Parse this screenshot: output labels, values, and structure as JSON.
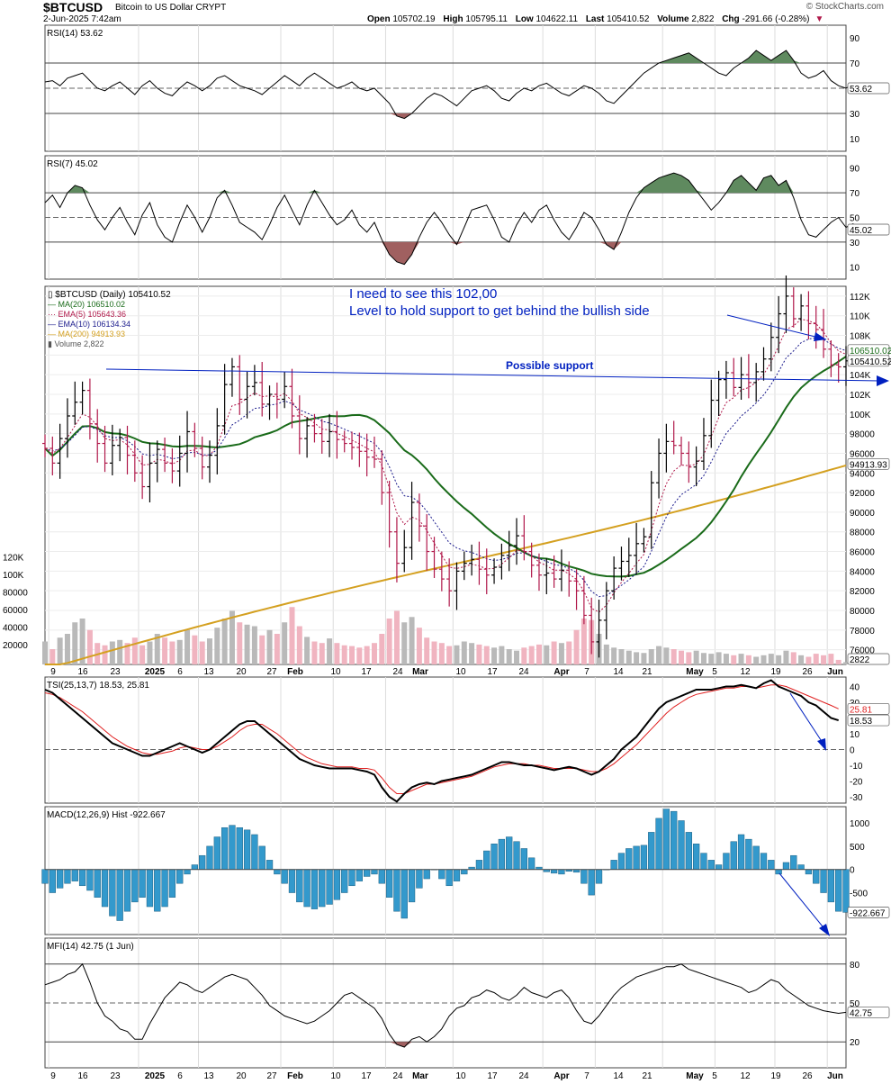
{
  "header": {
    "symbol": "$BTCUSD",
    "name": "Bitcoin to US Dollar",
    "exchange": "CRYPT",
    "date": "2-Jun-2025 7:42am",
    "brand": "© StockCharts.com",
    "open_label": "Open",
    "open": "105702.19",
    "high_label": "High",
    "high": "105795.11",
    "low_label": "Low",
    "low": "104622.11",
    "last_label": "Last",
    "last": "105410.52",
    "volume_label": "Volume",
    "volume": "2,822",
    "chg_label": "Chg",
    "chg": "-291.66 (-0.28%)"
  },
  "colors": {
    "up": "#000000",
    "down": "#b0184a",
    "ma20": "#1a6b1a",
    "ema5": "#b0184a",
    "ema10": "#1a1a8c",
    "ma200": "#d4a020",
    "vol_up": "#b9b9b9",
    "vol_down": "#f0b4c0",
    "rsi_fill_hi": "#5f8a5f",
    "rsi_fill_lo": "#a06060",
    "tsi_signal": "#e02020",
    "macd": "#3399cc",
    "annot": "#0020c0"
  },
  "chart_data": [
    {
      "type": "line",
      "panel": "RSI(14)",
      "legend": "RSI(14) 53.62",
      "last_value": "53.62",
      "ylim": [
        0,
        100
      ],
      "yticks": [
        10,
        30,
        50,
        70,
        90
      ],
      "levels": [
        30,
        70
      ],
      "values": [
        55,
        56,
        52,
        58,
        60,
        62,
        56,
        50,
        48,
        52,
        55,
        50,
        45,
        52,
        56,
        50,
        46,
        44,
        50,
        55,
        52,
        48,
        52,
        58,
        60,
        56,
        52,
        50,
        48,
        45,
        50,
        55,
        60,
        56,
        52,
        58,
        62,
        58,
        54,
        50,
        52,
        55,
        50,
        48,
        50,
        44,
        38,
        28,
        26,
        30,
        36,
        42,
        46,
        44,
        40,
        36,
        42,
        48,
        50,
        52,
        48,
        42,
        40,
        46,
        50,
        48,
        52,
        54,
        50,
        46,
        44,
        48,
        52,
        50,
        46,
        40,
        38,
        44,
        50,
        56,
        62,
        66,
        70,
        72,
        74,
        76,
        78,
        74,
        70,
        66,
        62,
        60,
        66,
        70,
        74,
        80,
        76,
        72,
        76,
        80,
        72,
        62,
        58,
        60,
        64,
        56,
        52,
        50,
        53.62
      ]
    },
    {
      "type": "line",
      "panel": "RSI(7)",
      "legend": "RSI(7) 45.02",
      "last_value": "45.02",
      "ylim": [
        0,
        100
      ],
      "yticks": [
        10,
        30,
        50,
        70,
        90
      ],
      "levels": [
        30,
        70
      ],
      "values": [
        62,
        68,
        58,
        70,
        76,
        74,
        60,
        48,
        40,
        50,
        58,
        46,
        36,
        52,
        62,
        44,
        34,
        30,
        46,
        60,
        50,
        38,
        50,
        66,
        72,
        60,
        46,
        42,
        38,
        32,
        44,
        58,
        68,
        56,
        44,
        60,
        72,
        62,
        52,
        44,
        48,
        56,
        44,
        38,
        46,
        32,
        20,
        14,
        12,
        20,
        34,
        46,
        54,
        46,
        36,
        28,
        42,
        56,
        58,
        60,
        48,
        34,
        30,
        44,
        54,
        46,
        56,
        60,
        48,
        38,
        32,
        42,
        54,
        50,
        40,
        28,
        24,
        38,
        54,
        66,
        74,
        78,
        82,
        84,
        86,
        84,
        80,
        72,
        64,
        56,
        62,
        70,
        80,
        84,
        78,
        72,
        82,
        84,
        76,
        80,
        66,
        48,
        36,
        34,
        40,
        46,
        50,
        42,
        45.02
      ]
    },
    {
      "type": "line",
      "panel": "Price",
      "legend_symbol": "$BTCUSD (Daily) 105410.52",
      "yticks": [
        "76000",
        "78000",
        "80000",
        "82000",
        "84000",
        "86000",
        "88000",
        "90000",
        "92000",
        "94000",
        "96000",
        "98000",
        "100K",
        "102K",
        "104K",
        "106K",
        "108K",
        "110K",
        "112K"
      ],
      "ylim": [
        74500,
        113000
      ],
      "volume_yticks": [
        "20000",
        "40000",
        "60000",
        "80000",
        "100K",
        "120K"
      ],
      "x_labels": [
        "9",
        "16",
        "23",
        "2025",
        "6",
        "13",
        "20",
        "27",
        "Feb",
        "10",
        "17",
        "24",
        "Mar",
        "10",
        "17",
        "24",
        "Apr",
        "7",
        "14",
        "21",
        "May",
        "5",
        "12",
        "19",
        "26",
        "Jun"
      ],
      "series": [
        {
          "name": "MA(20) 106510.02",
          "last_label": "106510.02"
        },
        {
          "name": "EMA(5) 105643.36"
        },
        {
          "name": "EMA(10) 106134.34"
        },
        {
          "name": "MA(200) 94913.93",
          "last_label": "94913.93"
        },
        {
          "name": "Volume 2,822",
          "last_label": "2822"
        }
      ],
      "close": [
        96500,
        95000,
        97500,
        99800,
        101200,
        102400,
        99000,
        97000,
        95000,
        96800,
        97600,
        95800,
        94000,
        92600,
        95000,
        96400,
        95000,
        94200,
        96000,
        98200,
        96500,
        94600,
        95800,
        98800,
        103000,
        104800,
        101500,
        102800,
        103200,
        101000,
        102000,
        101500,
        102800,
        99800,
        97500,
        98800,
        98000,
        97200,
        98200,
        97400,
        97000,
        96600,
        96200,
        95600,
        95400,
        92000,
        88000,
        84800,
        86400,
        91000,
        88600,
        86000,
        84200,
        83200,
        82000,
        84000,
        84800,
        85200,
        84200,
        83600,
        84400,
        85600,
        86600,
        87600,
        86000,
        84600,
        83600,
        83800,
        83200,
        84100,
        83000,
        82000,
        79500,
        76800,
        79000,
        82000,
        84300,
        85000,
        85600,
        86800,
        87500,
        93000,
        96000,
        97200,
        96800,
        96000,
        94600,
        95200,
        97800,
        101400,
        103500,
        104200,
        102700,
        104000,
        103200,
        104300,
        105600,
        107800,
        110200,
        112000,
        109700,
        111000,
        109200,
        108600,
        106600,
        105000,
        104800,
        105410
      ]
    },
    {
      "type": "line",
      "panel": "TSI(25,13,7)",
      "legend": "TSI(25,13,7) 18.53, 25.81",
      "tsi_label": "18.53",
      "signal_label": "25.81",
      "ylim": [
        -34,
        46
      ],
      "yticks": [
        -30,
        -20,
        -10,
        0,
        10,
        20,
        30,
        40
      ],
      "series": [
        {
          "name": "TSI",
          "values": [
            38,
            36,
            32,
            28,
            24,
            20,
            16,
            12,
            8,
            4,
            2,
            0,
            -2,
            -4,
            -4,
            -2,
            0,
            2,
            4,
            2,
            0,
            -2,
            0,
            4,
            8,
            12,
            16,
            18,
            18,
            14,
            10,
            6,
            2,
            -2,
            -6,
            -8,
            -10,
            -11,
            -12,
            -12,
            -12,
            -12,
            -13,
            -14,
            -16,
            -24,
            -30,
            -33,
            -28,
            -24,
            -22,
            -21,
            -22,
            -20,
            -19,
            -18,
            -17,
            -16,
            -14,
            -12,
            -10,
            -8,
            -8,
            -9,
            -10,
            -10,
            -11,
            -12,
            -13,
            -12,
            -11,
            -12,
            -14,
            -16,
            -14,
            -10,
            -6,
            0,
            4,
            8,
            14,
            20,
            26,
            30,
            32,
            34,
            36,
            38,
            38,
            38,
            39,
            40,
            40,
            41,
            40,
            39,
            42,
            44,
            40,
            38,
            36,
            34,
            30,
            28,
            24,
            20,
            18.53
          ]
        },
        {
          "name": "Signal",
          "values": [
            36,
            35,
            33,
            30,
            27,
            24,
            20,
            16,
            12,
            8,
            5,
            2,
            0,
            -2,
            -3,
            -3,
            -2,
            -1,
            1,
            2,
            1,
            0,
            0,
            2,
            5,
            8,
            12,
            15,
            16,
            16,
            13,
            10,
            6,
            2,
            -2,
            -5,
            -7,
            -9,
            -10,
            -11,
            -11,
            -11,
            -12,
            -12,
            -13,
            -18,
            -24,
            -28,
            -28,
            -26,
            -24,
            -22,
            -22,
            -21,
            -20,
            -19,
            -18,
            -17,
            -15,
            -13,
            -11,
            -10,
            -9,
            -9,
            -9,
            -10,
            -10,
            -11,
            -12,
            -12,
            -12,
            -12,
            -13,
            -14,
            -14,
            -12,
            -9,
            -5,
            -1,
            3,
            8,
            13,
            18,
            23,
            27,
            30,
            33,
            35,
            36,
            37,
            38,
            39,
            39,
            40,
            40,
            39,
            40,
            41,
            41,
            40,
            38,
            36,
            34,
            32,
            30,
            28,
            25.81
          ]
        }
      ]
    },
    {
      "type": "bar",
      "panel": "MACD(12,26,9)",
      "legend": "MACD(12,26,9) Hist -922.667",
      "last_label": "-922.667",
      "ylim": [
        -1400,
        1350
      ],
      "yticks": [
        -500,
        0,
        500,
        1000
      ],
      "values": [
        -300,
        -500,
        -400,
        -300,
        -250,
        -350,
        -450,
        -600,
        -800,
        -1000,
        -1100,
        -900,
        -700,
        -600,
        -800,
        -900,
        -800,
        -600,
        -300,
        -100,
        100,
        300,
        500,
        700,
        900,
        950,
        900,
        850,
        750,
        500,
        200,
        -100,
        -300,
        -500,
        -700,
        -800,
        -850,
        -800,
        -750,
        -650,
        -500,
        -350,
        -250,
        -150,
        -100,
        -300,
        -600,
        -900,
        -1050,
        -700,
        -400,
        -200,
        0,
        -200,
        -350,
        -250,
        -100,
        50,
        200,
        400,
        550,
        650,
        700,
        600,
        450,
        250,
        50,
        -50,
        -80,
        -100,
        -40,
        -60,
        -300,
        -550,
        -300,
        0,
        200,
        350,
        450,
        500,
        520,
        800,
        1100,
        1300,
        1250,
        1050,
        800,
        550,
        350,
        200,
        100,
        350,
        600,
        750,
        650,
        500,
        350,
        200,
        -100,
        150,
        300,
        100,
        -100,
        -300,
        -500,
        -700,
        -900,
        -922.667
      ]
    },
    {
      "type": "line",
      "panel": "MFI(14)",
      "legend": "MFI(14) 42.75 (1 Jun)",
      "last_value": "42.75",
      "ylim": [
        0,
        100
      ],
      "yticks": [
        20,
        50,
        80
      ],
      "levels": [
        20,
        80
      ],
      "values": [
        64,
        66,
        68,
        72,
        74,
        80,
        66,
        50,
        40,
        36,
        30,
        28,
        22,
        22,
        34,
        44,
        54,
        60,
        66,
        64,
        60,
        58,
        62,
        66,
        70,
        72,
        70,
        68,
        62,
        56,
        48,
        44,
        40,
        38,
        36,
        34,
        36,
        40,
        44,
        50,
        56,
        58,
        54,
        50,
        46,
        38,
        26,
        18,
        16,
        22,
        24,
        20,
        24,
        30,
        40,
        46,
        48,
        54,
        56,
        60,
        58,
        54,
        52,
        56,
        62,
        58,
        56,
        54,
        58,
        60,
        54,
        44,
        36,
        34,
        40,
        48,
        56,
        62,
        66,
        70,
        72,
        74,
        76,
        78,
        78,
        80,
        76,
        74,
        72,
        70,
        68,
        66,
        64,
        62,
        58,
        60,
        64,
        68,
        66,
        60,
        56,
        52,
        48,
        46,
        44,
        43,
        42,
        42.75
      ]
    }
  ],
  "annotations": {
    "note_line1": "I need to see this 102,00",
    "note_line2": "Level to hold support to get behind the bullish side",
    "support_label": "Possible support"
  }
}
